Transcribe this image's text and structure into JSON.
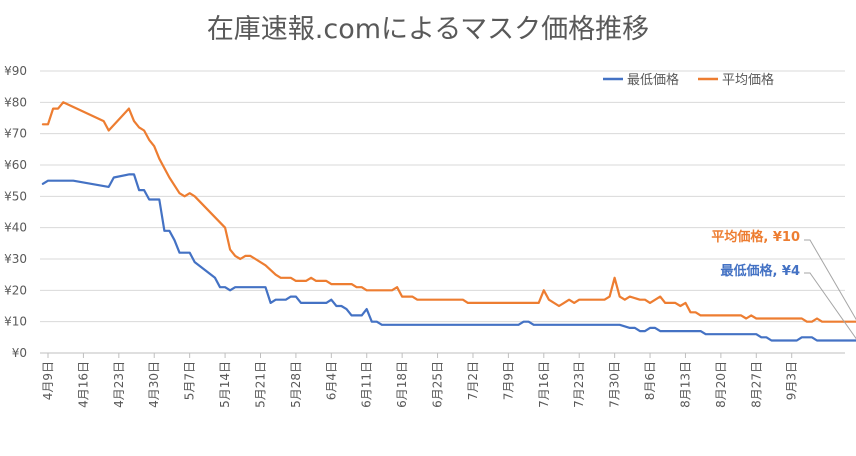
{
  "chart_data": {
    "type": "line",
    "title": "在庫速報.comによるマスク価格推移",
    "xlabel": "",
    "ylabel": "",
    "ylim": [
      0,
      90
    ],
    "yticks": [
      0,
      10,
      20,
      30,
      40,
      50,
      60,
      70,
      80,
      90
    ],
    "ytick_labels": [
      "¥0",
      "¥10",
      "¥20",
      "¥30",
      "¥40",
      "¥50",
      "¥60",
      "¥70",
      "¥80",
      "¥90"
    ],
    "x_start": "2020-04-09",
    "x_end": "2020-09-08",
    "xtick_dates": [
      "2020-04-09",
      "2020-04-16",
      "2020-04-23",
      "2020-04-30",
      "2020-05-07",
      "2020-05-14",
      "2020-05-21",
      "2020-05-28",
      "2020-06-04",
      "2020-06-11",
      "2020-06-18",
      "2020-06-25",
      "2020-07-02",
      "2020-07-09",
      "2020-07-16",
      "2020-07-23",
      "2020-07-30",
      "2020-08-06",
      "2020-08-13",
      "2020-08-20",
      "2020-08-27",
      "2020-09-03"
    ],
    "xtick_labels": [
      "4月9日",
      "4月16日",
      "4月23日",
      "4月30日",
      "5月7日",
      "5月14日",
      "5月21日",
      "5月28日",
      "6月4日",
      "6月11日",
      "6月18日",
      "6月25日",
      "7月2日",
      "7月9日",
      "7月16日",
      "7月23日",
      "7月30日",
      "8月6日",
      "8月13日",
      "8月20日",
      "8月27日",
      "9月3日"
    ],
    "grid": true,
    "legend_position": "top-right",
    "series": [
      {
        "name": "最低価格",
        "color": "#4472C4",
        "end_label": "最低価格, ¥4",
        "points": [
          [
            "2020-04-08",
            54
          ],
          [
            "2020-04-09",
            55
          ],
          [
            "2020-04-14",
            55
          ],
          [
            "2020-04-21",
            53
          ],
          [
            "2020-04-22",
            56
          ],
          [
            "2020-04-25",
            57
          ],
          [
            "2020-04-26",
            57
          ],
          [
            "2020-04-27",
            52
          ],
          [
            "2020-04-28",
            52
          ],
          [
            "2020-04-29",
            49
          ],
          [
            "2020-05-01",
            49
          ],
          [
            "2020-05-02",
            39
          ],
          [
            "2020-05-03",
            39
          ],
          [
            "2020-05-04",
            36
          ],
          [
            "2020-05-05",
            32
          ],
          [
            "2020-05-07",
            32
          ],
          [
            "2020-05-08",
            29
          ],
          [
            "2020-05-12",
            24
          ],
          [
            "2020-05-13",
            21
          ],
          [
            "2020-05-14",
            21
          ],
          [
            "2020-05-15",
            20
          ],
          [
            "2020-05-16",
            21
          ],
          [
            "2020-05-22",
            21
          ],
          [
            "2020-05-23",
            16
          ],
          [
            "2020-05-24",
            17
          ],
          [
            "2020-05-26",
            17
          ],
          [
            "2020-05-27",
            18
          ],
          [
            "2020-05-28",
            18
          ],
          [
            "2020-05-29",
            16
          ],
          [
            "2020-06-03",
            16
          ],
          [
            "2020-06-04",
            17
          ],
          [
            "2020-06-05",
            15
          ],
          [
            "2020-06-06",
            15
          ],
          [
            "2020-06-07",
            14
          ],
          [
            "2020-06-08",
            12
          ],
          [
            "2020-06-10",
            12
          ],
          [
            "2020-06-11",
            14
          ],
          [
            "2020-06-12",
            10
          ],
          [
            "2020-06-13",
            10
          ],
          [
            "2020-06-14",
            9
          ],
          [
            "2020-07-11",
            9
          ],
          [
            "2020-07-12",
            10
          ],
          [
            "2020-07-13",
            10
          ],
          [
            "2020-07-14",
            9
          ],
          [
            "2020-07-31",
            9
          ],
          [
            "2020-08-02",
            8
          ],
          [
            "2020-08-03",
            8
          ],
          [
            "2020-08-04",
            7
          ],
          [
            "2020-08-05",
            7
          ],
          [
            "2020-08-06",
            8
          ],
          [
            "2020-08-07",
            8
          ],
          [
            "2020-08-08",
            7
          ],
          [
            "2020-08-16",
            7
          ],
          [
            "2020-08-17",
            6
          ],
          [
            "2020-08-27",
            6
          ],
          [
            "2020-08-28",
            5
          ],
          [
            "2020-08-29",
            5
          ],
          [
            "2020-08-30",
            4
          ],
          [
            "2020-09-04",
            4
          ],
          [
            "2020-09-05",
            5
          ],
          [
            "2020-09-07",
            5
          ],
          [
            "2020-09-08",
            4
          ],
          [
            "2020-09-16",
            4
          ]
        ]
      },
      {
        "name": "平均価格",
        "color": "#ED7D31",
        "end_label": "平均価格, ¥10",
        "points": [
          [
            "2020-04-08",
            73
          ],
          [
            "2020-04-09",
            73
          ],
          [
            "2020-04-10",
            78
          ],
          [
            "2020-04-11",
            78
          ],
          [
            "2020-04-12",
            80
          ],
          [
            "2020-04-20",
            74
          ],
          [
            "2020-04-21",
            71
          ],
          [
            "2020-04-25",
            78
          ],
          [
            "2020-04-26",
            74
          ],
          [
            "2020-04-27",
            72
          ],
          [
            "2020-04-28",
            71
          ],
          [
            "2020-04-29",
            68
          ],
          [
            "2020-04-30",
            66
          ],
          [
            "2020-05-01",
            62
          ],
          [
            "2020-05-03",
            56
          ],
          [
            "2020-05-05",
            51
          ],
          [
            "2020-05-06",
            50
          ],
          [
            "2020-05-07",
            51
          ],
          [
            "2020-05-08",
            50
          ],
          [
            "2020-05-14",
            40
          ],
          [
            "2020-05-15",
            33
          ],
          [
            "2020-05-16",
            31
          ],
          [
            "2020-05-17",
            30
          ],
          [
            "2020-05-18",
            31
          ],
          [
            "2020-05-19",
            31
          ],
          [
            "2020-05-22",
            28
          ],
          [
            "2020-05-24",
            25
          ],
          [
            "2020-05-25",
            24
          ],
          [
            "2020-05-27",
            24
          ],
          [
            "2020-05-28",
            23
          ],
          [
            "2020-05-30",
            23
          ],
          [
            "2020-05-31",
            24
          ],
          [
            "2020-06-01",
            23
          ],
          [
            "2020-06-03",
            23
          ],
          [
            "2020-06-04",
            22
          ],
          [
            "2020-06-08",
            22
          ],
          [
            "2020-06-09",
            21
          ],
          [
            "2020-06-10",
            21
          ],
          [
            "2020-06-11",
            20
          ],
          [
            "2020-06-16",
            20
          ],
          [
            "2020-06-17",
            21
          ],
          [
            "2020-06-18",
            18
          ],
          [
            "2020-06-20",
            18
          ],
          [
            "2020-06-21",
            17
          ],
          [
            "2020-06-30",
            17
          ],
          [
            "2020-07-01",
            16
          ],
          [
            "2020-07-15",
            16
          ],
          [
            "2020-07-16",
            20
          ],
          [
            "2020-07-17",
            17
          ],
          [
            "2020-07-19",
            15
          ],
          [
            "2020-07-20",
            16
          ],
          [
            "2020-07-21",
            17
          ],
          [
            "2020-07-22",
            16
          ],
          [
            "2020-07-23",
            17
          ],
          [
            "2020-07-28",
            17
          ],
          [
            "2020-07-29",
            18
          ],
          [
            "2020-07-30",
            24
          ],
          [
            "2020-07-31",
            18
          ],
          [
            "2020-08-01",
            17
          ],
          [
            "2020-08-02",
            18
          ],
          [
            "2020-08-04",
            17
          ],
          [
            "2020-08-05",
            17
          ],
          [
            "2020-08-06",
            16
          ],
          [
            "2020-08-08",
            18
          ],
          [
            "2020-08-09",
            16
          ],
          [
            "2020-08-11",
            16
          ],
          [
            "2020-08-12",
            15
          ],
          [
            "2020-08-13",
            16
          ],
          [
            "2020-08-14",
            13
          ],
          [
            "2020-08-15",
            13
          ],
          [
            "2020-08-16",
            12
          ],
          [
            "2020-08-24",
            12
          ],
          [
            "2020-08-25",
            11
          ],
          [
            "2020-08-26",
            12
          ],
          [
            "2020-08-27",
            11
          ],
          [
            "2020-09-05",
            11
          ],
          [
            "2020-09-06",
            10
          ],
          [
            "2020-09-07",
            10
          ],
          [
            "2020-09-08",
            11
          ],
          [
            "2020-09-09",
            10
          ],
          [
            "2020-09-16",
            10
          ]
        ]
      }
    ]
  }
}
